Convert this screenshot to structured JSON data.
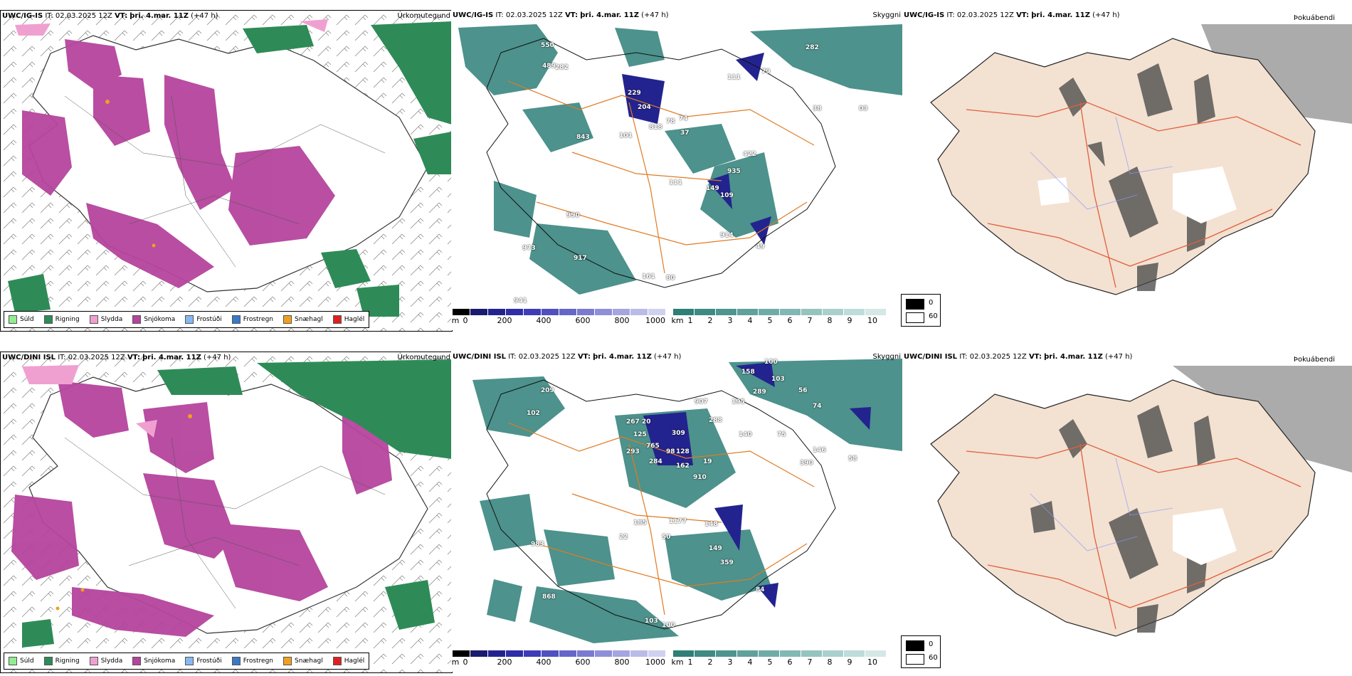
{
  "run_header": {
    "it_prefix": "IT:",
    "it": "02.03.2025 12Z",
    "vt_prefix": "VT:",
    "vt": "þri. 4.mar. 11Z",
    "lead": "(+47 h)"
  },
  "rows": [
    {
      "model": "UWC/IG-IS",
      "cloud_labels": [
        "550",
        "489",
        "282",
        "229",
        "204",
        "818",
        "78",
        "74",
        "37",
        "101",
        "843",
        "79",
        "111",
        "282",
        "38",
        "03",
        "422",
        "935",
        "111",
        "149",
        "109",
        "914",
        "49",
        "990",
        "973",
        "917",
        "161",
        "80",
        "941"
      ]
    },
    {
      "model": "UWC/DINI ISL",
      "cloud_labels": [
        "209",
        "102",
        "100",
        "158",
        "289",
        "103",
        "56",
        "195",
        "907",
        "74",
        "267",
        "20",
        "288",
        "125",
        "765",
        "309",
        "293",
        "284",
        "98",
        "128",
        "162",
        "19",
        "910",
        "140",
        "146",
        "75",
        "390",
        "58",
        "185",
        "1177",
        "50",
        "22",
        "148",
        "149",
        "359",
        "84",
        "983",
        "868",
        "103",
        "100"
      ]
    }
  ],
  "panels": {
    "precip_type": "Úrkomutegund",
    "visibility": "Skyggni",
    "fog": "Þokuábendi"
  },
  "precip_legend": [
    {
      "label": "Súld",
      "color": "#90ee90"
    },
    {
      "label": "Rigning",
      "color": "#2e8b57"
    },
    {
      "label": "Slydda",
      "color": "#f0a0d0"
    },
    {
      "label": "Snjókoma",
      "color": "#b5449d"
    },
    {
      "label": "Frostúði",
      "color": "#87b8f0"
    },
    {
      "label": "Frostregn",
      "color": "#3a78c8"
    },
    {
      "label": "Snæhagl",
      "color": "#f0a020"
    },
    {
      "label": "Haglél",
      "color": "#e02020"
    }
  ],
  "terrain_bar": {
    "unit": "m",
    "ticks": [
      "0",
      "200",
      "400",
      "600",
      "800",
      "1000"
    ],
    "colors": [
      "#000000",
      "#1a1a6e",
      "#23238f",
      "#2e2ea8",
      "#3d3db8",
      "#5050c0",
      "#6666c8",
      "#7a7ad0",
      "#8f8fd8",
      "#a5a5e0",
      "#bbbbe8",
      "#d0d0f0"
    ]
  },
  "vis_bar": {
    "unit": "km",
    "ticks": [
      "1",
      "2",
      "3",
      "4",
      "5",
      "6",
      "7",
      "8",
      "9",
      "10"
    ],
    "colors": [
      "#2e7f78",
      "#3e8a84",
      "#4e958f",
      "#5fa19b",
      "#70aca7",
      "#82b8b3",
      "#95c4bf",
      "#a9d0cc",
      "#bedcd9",
      "#d4e8e6"
    ]
  },
  "fog_legend": {
    "values": [
      "0",
      "60"
    ],
    "colors": [
      "#000000",
      "#ffffff"
    ]
  }
}
